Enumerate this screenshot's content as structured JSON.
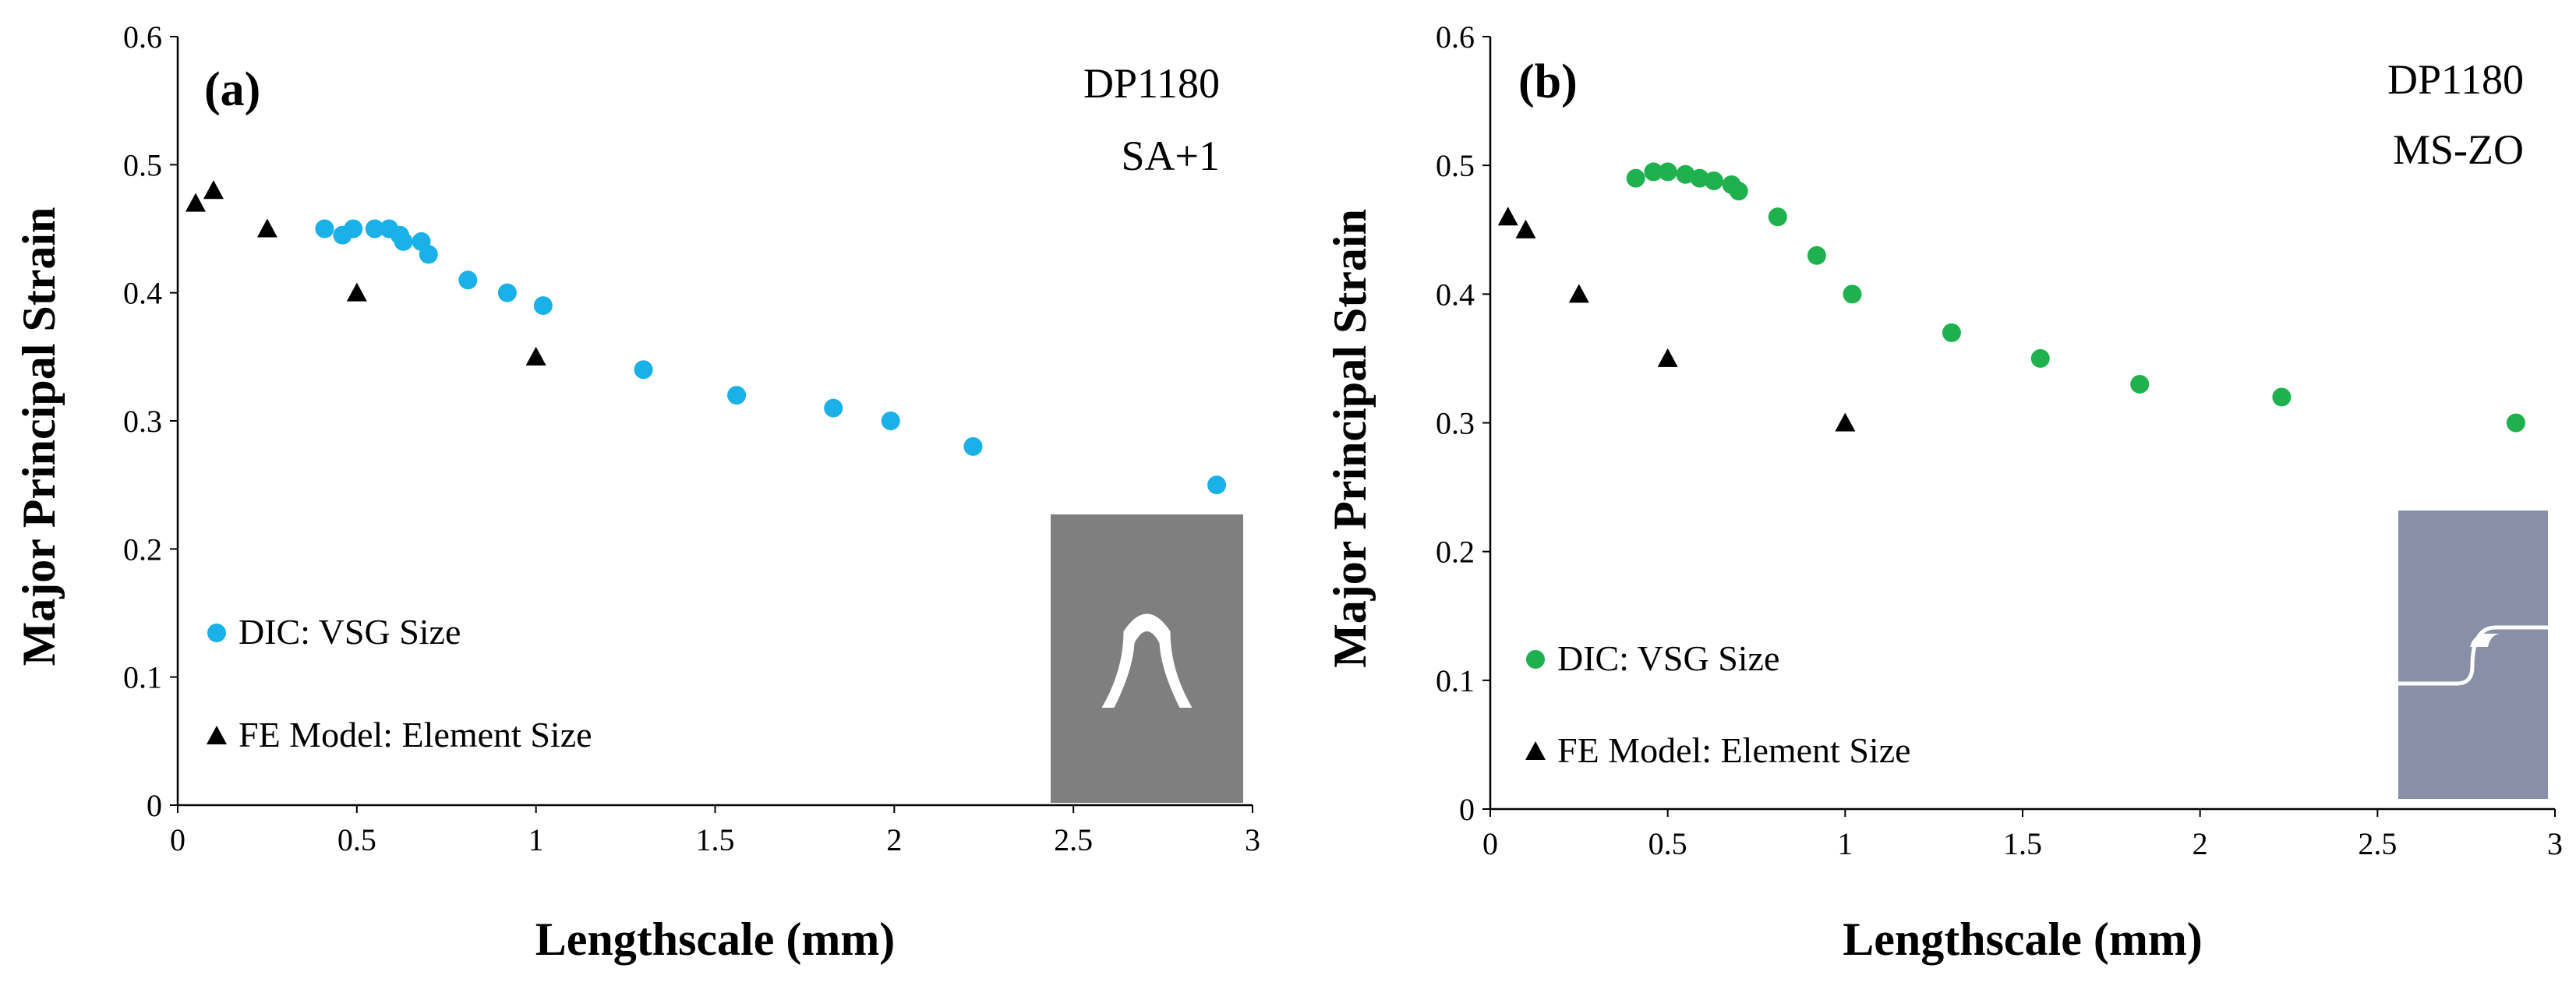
{
  "chart_data": [
    {
      "type": "scatter",
      "panel_label": "(a)",
      "annotation_lines": [
        "DP1180",
        "SA+1"
      ],
      "xlabel": "Lengthscale (mm)",
      "ylabel": "Major Principal Strain",
      "xlim": [
        0,
        3
      ],
      "ylim": [
        0,
        0.6
      ],
      "xticks": [
        "0",
        "0.5",
        "1",
        "1.5",
        "2",
        "2.5",
        "3"
      ],
      "yticks": [
        "0",
        "0.1",
        "0.2",
        "0.3",
        "0.4",
        "0.5",
        "0.6"
      ],
      "grid": false,
      "legend_position": "bottom-left",
      "inset": "SA+1 specimen geometry",
      "series": [
        {
          "name": "DIC: VSG Size",
          "marker": "circle",
          "color": "#1ab0e8",
          "x": [
            0.41,
            0.46,
            0.49,
            0.55,
            0.59,
            0.62,
            0.63,
            0.68,
            0.7,
            0.81,
            0.92,
            1.02,
            1.3,
            1.56,
            1.83,
            1.99,
            2.22,
            2.9
          ],
          "y": [
            0.45,
            0.445,
            0.45,
            0.45,
            0.45,
            0.445,
            0.44,
            0.44,
            0.43,
            0.41,
            0.4,
            0.39,
            0.34,
            0.32,
            0.31,
            0.3,
            0.28,
            0.25
          ]
        },
        {
          "name": "FE Model: Element Size",
          "marker": "triangle",
          "color": "#000000",
          "x": [
            0.05,
            0.1,
            0.25,
            0.5,
            1.0
          ],
          "y": [
            0.47,
            0.48,
            0.45,
            0.4,
            0.35
          ]
        }
      ]
    },
    {
      "type": "scatter",
      "panel_label": "(b)",
      "annotation_lines": [
        "DP1180",
        "MS-ZO"
      ],
      "xlabel": "Lengthscale (mm)",
      "ylabel": "Major Principal Strain",
      "xlim": [
        0,
        3
      ],
      "ylim": [
        0,
        0.6
      ],
      "xticks": [
        "0",
        "0.5",
        "1",
        "1.5",
        "2",
        "2.5",
        "3"
      ],
      "yticks": [
        "0",
        "0.1",
        "0.2",
        "0.3",
        "0.4",
        "0.5",
        "0.6"
      ],
      "grid": false,
      "legend_position": "bottom-left",
      "inset": "MS-ZO specimen geometry",
      "series": [
        {
          "name": "DIC: VSG Size",
          "marker": "circle",
          "color": "#1eb14d",
          "x": [
            0.41,
            0.46,
            0.5,
            0.55,
            0.59,
            0.63,
            0.68,
            0.7,
            0.81,
            0.92,
            1.02,
            1.3,
            1.55,
            1.83,
            2.23,
            2.89
          ],
          "y": [
            0.49,
            0.495,
            0.495,
            0.493,
            0.49,
            0.488,
            0.485,
            0.48,
            0.46,
            0.43,
            0.4,
            0.37,
            0.35,
            0.33,
            0.32,
            0.3
          ]
        },
        {
          "name": "FE Model: Element Size",
          "marker": "triangle",
          "color": "#000000",
          "x": [
            0.05,
            0.1,
            0.25,
            0.5,
            1.0
          ],
          "y": [
            0.46,
            0.45,
            0.4,
            0.35,
            0.3
          ]
        }
      ]
    }
  ]
}
